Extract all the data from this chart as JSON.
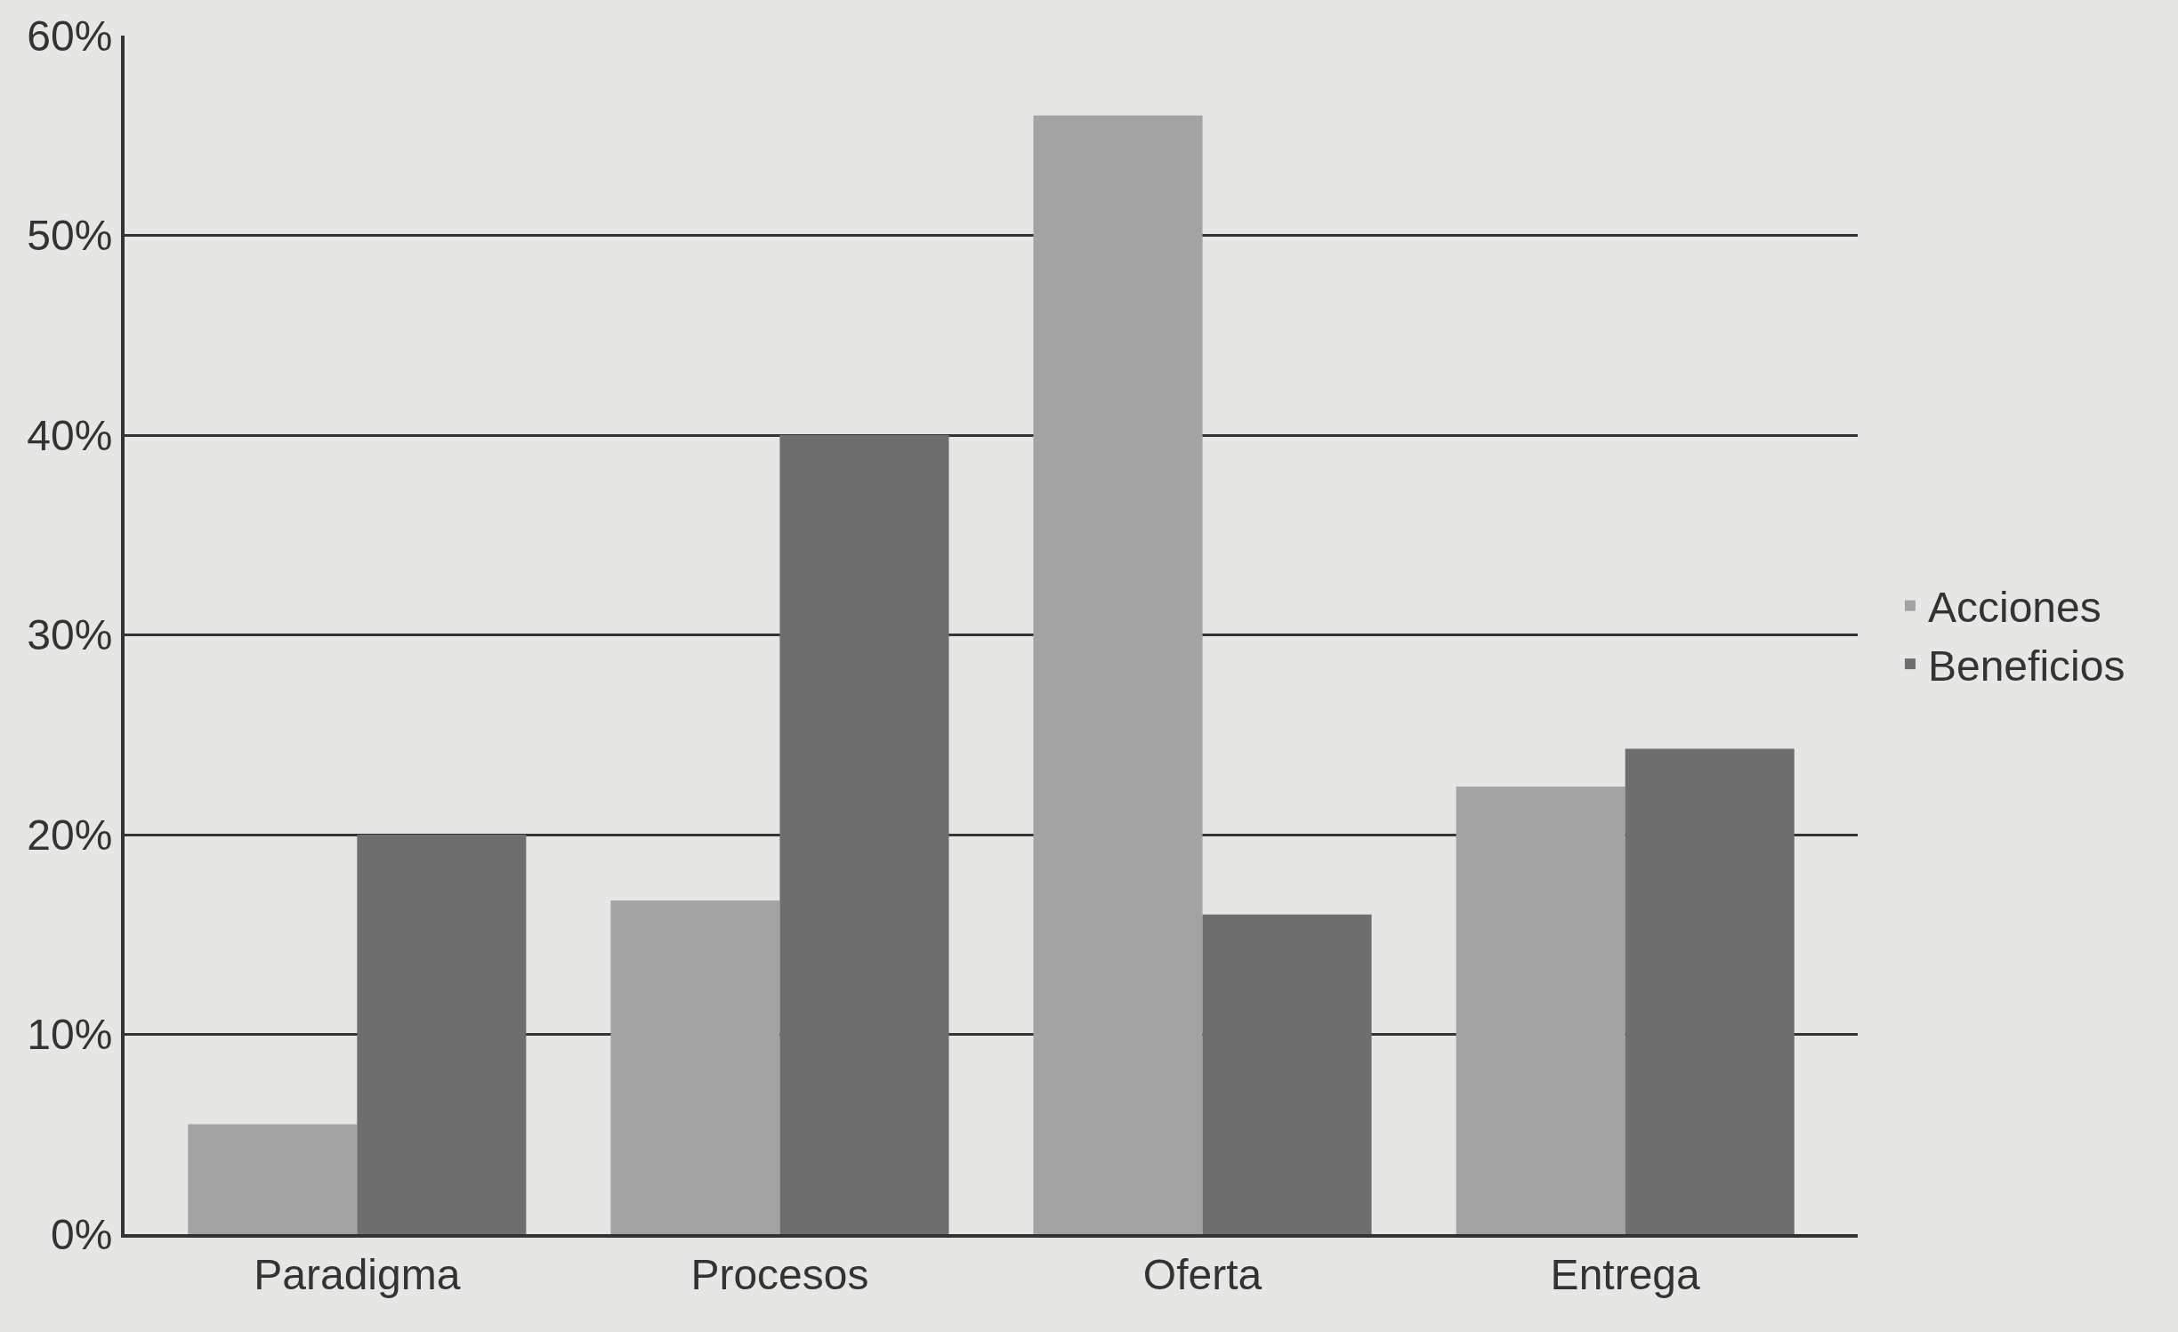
{
  "chart_data": {
    "type": "bar",
    "categories": [
      "Paradigma",
      "Procesos",
      "Oferta",
      "Entrega"
    ],
    "series": [
      {
        "name": "Acciones",
        "color": "#a3a3a3",
        "values": [
          5.5,
          16.7,
          56,
          22.4
        ]
      },
      {
        "name": "Beneficios",
        "color": "#6e6e6e",
        "values": [
          20,
          40,
          16,
          24.3
        ]
      }
    ],
    "ylim": [
      0,
      60
    ],
    "yticks": [
      {
        "value": 0,
        "label": "0%"
      },
      {
        "value": 10,
        "label": "10%"
      },
      {
        "value": 20,
        "label": "20%"
      },
      {
        "value": 30,
        "label": "30%"
      },
      {
        "value": 40,
        "label": "40%"
      },
      {
        "value": 50,
        "label": "50%"
      },
      {
        "value": 60,
        "label": "60%"
      }
    ],
    "grid": "y",
    "legend": "right"
  }
}
